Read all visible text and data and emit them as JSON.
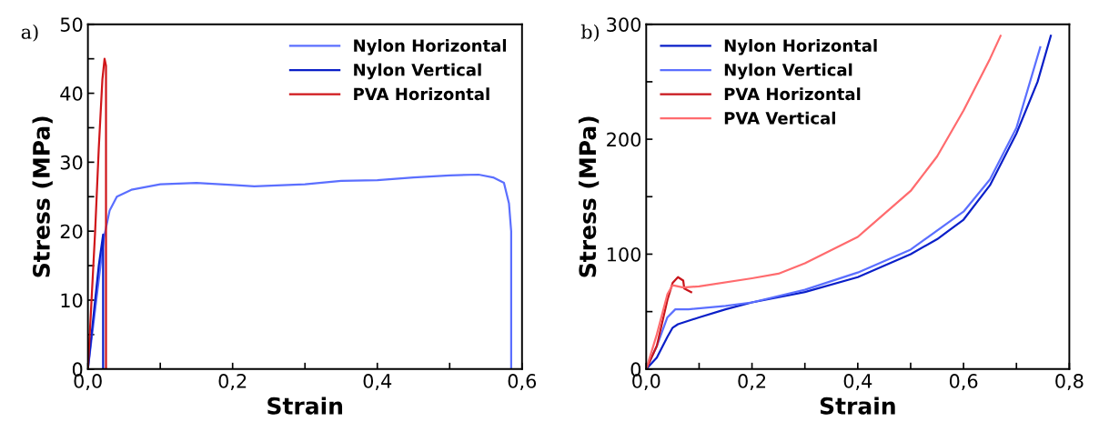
{
  "chart_data": [
    {
      "type": "line",
      "annotations": [
        "a)"
      ],
      "xlabel": "Strain",
      "ylabel": "Stress (MPa)",
      "xlim": [
        0,
        0.6
      ],
      "ylim": [
        0,
        50
      ],
      "xticks": [
        {
          "value": 0,
          "label": "0,0"
        },
        {
          "value": 0.1,
          "label": null
        },
        {
          "value": 0.2,
          "label": "0,2"
        },
        {
          "value": 0.3,
          "label": null
        },
        {
          "value": 0.4,
          "label": "0,4"
        },
        {
          "value": 0.5,
          "label": null
        },
        {
          "value": 0.6,
          "label": "0,6"
        }
      ],
      "yticks": [
        0,
        {
          "value": 5,
          "label": null
        },
        10,
        {
          "value": 15,
          "label": null
        },
        20,
        {
          "value": 25,
          "label": null
        },
        30,
        {
          "value": 35,
          "label": null
        },
        40,
        {
          "value": 45,
          "label": null
        },
        50
      ],
      "legend": "top right",
      "grid": false,
      "series": [
        {
          "name": "Nylon Horizontal",
          "color": "#5b6fff",
          "x": [
            0,
            0.022,
            0.03,
            0.04,
            0.06,
            0.1,
            0.15,
            0.2,
            0.23,
            0.3,
            0.35,
            0.4,
            0.45,
            0.5,
            0.54,
            0.56,
            0.575,
            0.582,
            0.585,
            0.585
          ],
          "values": [
            0,
            19,
            23,
            25,
            26,
            26.8,
            27,
            26.7,
            26.5,
            26.8,
            27.3,
            27.4,
            27.8,
            28.1,
            28.2,
            27.8,
            27,
            24,
            20,
            0
          ]
        },
        {
          "name": "Nylon Vertical",
          "color": "#0a1fc8",
          "x": [
            0,
            0.005,
            0.01,
            0.015,
            0.021,
            0.021
          ],
          "values": [
            0,
            5,
            10,
            15,
            19.5,
            0
          ]
        },
        {
          "name": "PVA Horizontal",
          "color": "#d0161a",
          "x": [
            0,
            0.005,
            0.01,
            0.015,
            0.02,
            0.023,
            0.025,
            0.025
          ],
          "values": [
            0,
            10,
            20,
            32,
            42,
            45,
            44,
            0
          ]
        }
      ]
    },
    {
      "type": "line",
      "annotations": [
        "b)"
      ],
      "xlabel": "Strain",
      "ylabel": "Stress (MPa)",
      "xlim": [
        0,
        0.8
      ],
      "ylim": [
        0,
        300
      ],
      "xticks": [
        {
          "value": 0,
          "label": "0,0"
        },
        {
          "value": 0.1,
          "label": null
        },
        {
          "value": 0.2,
          "label": "0,2"
        },
        {
          "value": 0.3,
          "label": null
        },
        {
          "value": 0.4,
          "label": "0,4"
        },
        {
          "value": 0.5,
          "label": null
        },
        {
          "value": 0.6,
          "label": "0,6"
        },
        {
          "value": 0.7,
          "label": null
        },
        {
          "value": 0.8,
          "label": "0,8"
        }
      ],
      "yticks": [
        0,
        {
          "value": 50,
          "label": null
        },
        100,
        {
          "value": 150,
          "label": null
        },
        200,
        {
          "value": 250,
          "label": null
        },
        300
      ],
      "legend": "top left",
      "grid": false,
      "series": [
        {
          "name": "Nylon Horizontal",
          "color": "#0a1fc8",
          "x": [
            0,
            0.02,
            0.04,
            0.05,
            0.06,
            0.1,
            0.15,
            0.2,
            0.3,
            0.4,
            0.5,
            0.55,
            0.6,
            0.65,
            0.7,
            0.74,
            0.765
          ],
          "values": [
            0,
            10,
            28,
            36,
            39,
            45,
            52,
            58,
            67,
            80,
            100,
            113,
            130,
            160,
            205,
            250,
            290
          ]
        },
        {
          "name": "Nylon Vertical",
          "color": "#5b6fff",
          "x": [
            0,
            0.02,
            0.04,
            0.055,
            0.08,
            0.15,
            0.2,
            0.3,
            0.4,
            0.5,
            0.6,
            0.65,
            0.7,
            0.745
          ],
          "values": [
            0,
            20,
            45,
            52,
            52,
            55,
            58,
            69,
            84,
            104,
            137,
            165,
            210,
            280
          ]
        },
        {
          "name": "PVA Horizontal",
          "color": "#c8141a",
          "x": [
            0,
            0.02,
            0.04,
            0.05,
            0.06,
            0.07,
            0.072,
            0.085
          ],
          "values": [
            0,
            20,
            60,
            75,
            80,
            77,
            70,
            67
          ]
        },
        {
          "name": "PVA Vertical",
          "color": "#ff6b6e",
          "x": [
            0,
            0.02,
            0.04,
            0.05,
            0.07,
            0.1,
            0.2,
            0.25,
            0.3,
            0.4,
            0.5,
            0.55,
            0.6,
            0.65,
            0.67
          ],
          "values": [
            0,
            30,
            65,
            73,
            71,
            72,
            79,
            83,
            92,
            115,
            155,
            185,
            225,
            270,
            290
          ]
        }
      ]
    }
  ]
}
